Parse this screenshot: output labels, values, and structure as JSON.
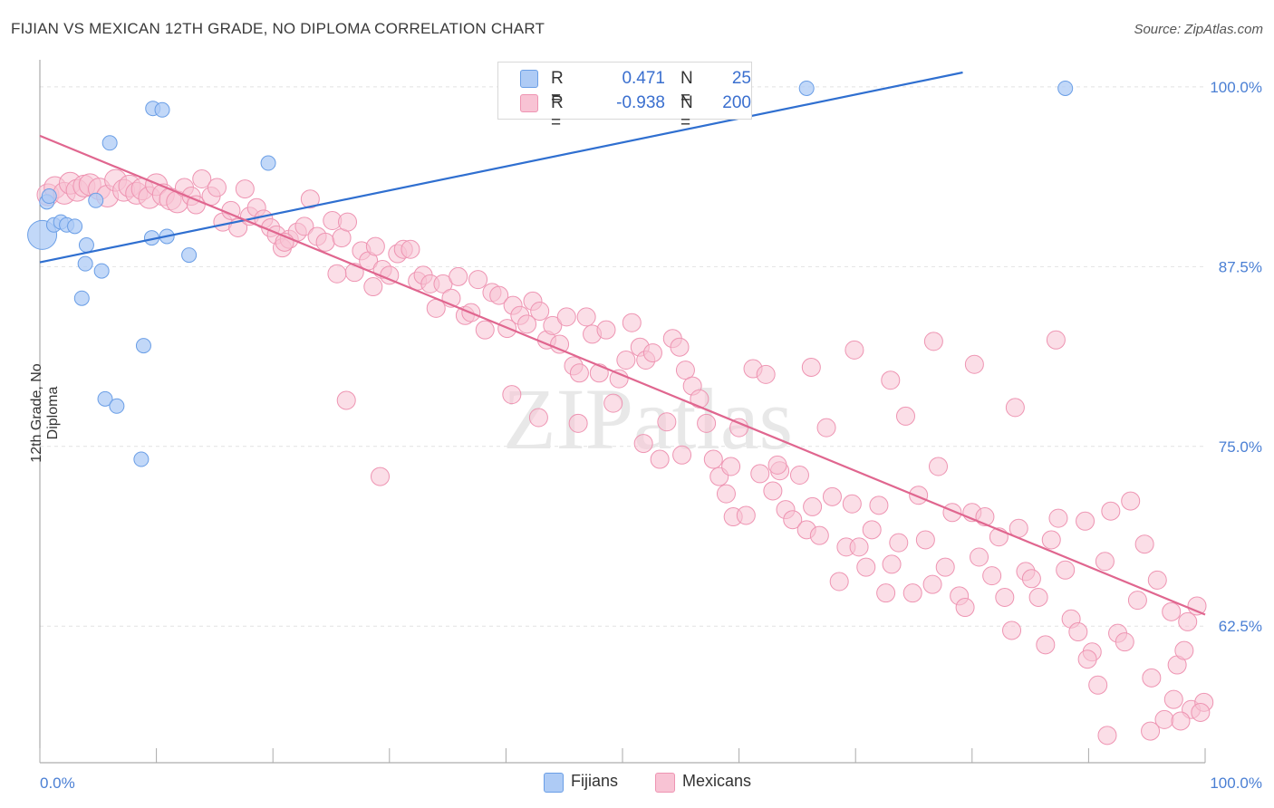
{
  "title": "FIJIAN VS MEXICAN 12TH GRADE, NO DIPLOMA CORRELATION CHART",
  "source": "Source: ZipAtlas.com",
  "watermark": "ZIPatlas",
  "colors": {
    "fijian_fill": "#aecbf5",
    "fijian_stroke": "#6a9ee6",
    "fijian_line": "#2f6fd0",
    "mexican_fill": "#f8c3d4",
    "mexican_stroke": "#ee94b2",
    "mexican_line": "#e0668f",
    "tick_label": "#4a7fd4",
    "grid": "#e2e2e2"
  },
  "legend": {
    "fijians": {
      "r_label": "R =",
      "r_value": "0.471",
      "n_label": "N =",
      "n_value": "25"
    },
    "mexicans": {
      "r_label": "R =",
      "r_value": "-0.938",
      "n_label": "N =",
      "n_value": "200"
    }
  },
  "bottom_legend": [
    "Fijians",
    "Mexicans"
  ],
  "chart_data": {
    "type": "scatter",
    "xlabel": "",
    "ylabel": "12th Grade, No Diploma",
    "xlim": [
      0,
      100
    ],
    "ylim": [
      53,
      101
    ],
    "x_tick_labels": [
      "0.0%",
      "100.0%"
    ],
    "y_ticks": [
      62.5,
      75.0,
      87.5,
      100.0
    ],
    "y_tick_labels": [
      "62.5%",
      "75.0%",
      "87.5%",
      "100.0%"
    ],
    "grid": true,
    "legend_position": "top-center",
    "series": [
      {
        "name": "Fijians",
        "r": 0.471,
        "n": 25,
        "trend": {
          "x": [
            0,
            79.2
          ],
          "y": [
            87.8,
            101.0
          ]
        },
        "points": [
          [
            0.2,
            89.7
          ],
          [
            0.6,
            92.0
          ],
          [
            1.2,
            90.4
          ],
          [
            1.8,
            90.6
          ],
          [
            2.3,
            90.4
          ],
          [
            3.0,
            90.3
          ],
          [
            4.8,
            92.1
          ],
          [
            4.0,
            89.0
          ],
          [
            3.9,
            87.7
          ],
          [
            5.3,
            87.2
          ],
          [
            3.6,
            85.3
          ],
          [
            6.0,
            96.1
          ],
          [
            9.7,
            98.5
          ],
          [
            10.5,
            98.4
          ],
          [
            19.6,
            94.7
          ],
          [
            9.6,
            89.5
          ],
          [
            10.9,
            89.6
          ],
          [
            12.8,
            88.3
          ],
          [
            8.9,
            82.0
          ],
          [
            5.6,
            78.3
          ],
          [
            6.6,
            77.8
          ],
          [
            8.7,
            74.1
          ],
          [
            65.8,
            99.9
          ],
          [
            88.0,
            99.9
          ],
          [
            0.8,
            92.4
          ]
        ]
      },
      {
        "name": "Mexicans",
        "r": -0.938,
        "n": 200,
        "trend": {
          "x": [
            0,
            100
          ],
          "y": [
            96.6,
            63.3
          ]
        },
        "points": [
          [
            0.7,
            92.5
          ],
          [
            1.3,
            93.0
          ],
          [
            2.1,
            92.6
          ],
          [
            2.6,
            93.3
          ],
          [
            3.2,
            92.8
          ],
          [
            3.8,
            93.1
          ],
          [
            4.3,
            93.2
          ],
          [
            5.1,
            92.9
          ],
          [
            5.8,
            92.4
          ],
          [
            6.5,
            93.5
          ],
          [
            7.2,
            92.8
          ],
          [
            7.7,
            93.1
          ],
          [
            8.3,
            92.6
          ],
          [
            8.8,
            92.9
          ],
          [
            9.4,
            92.3
          ],
          [
            10.0,
            93.2
          ],
          [
            10.6,
            92.5
          ],
          [
            11.2,
            92.2
          ],
          [
            11.8,
            92.0
          ],
          [
            12.4,
            93.0
          ],
          [
            13.0,
            92.4
          ],
          [
            13.4,
            91.8
          ],
          [
            13.9,
            93.6
          ],
          [
            14.7,
            92.4
          ],
          [
            15.2,
            93.0
          ],
          [
            15.7,
            90.6
          ],
          [
            16.4,
            91.4
          ],
          [
            17.0,
            90.2
          ],
          [
            17.6,
            92.9
          ],
          [
            18.0,
            91.0
          ],
          [
            18.6,
            91.6
          ],
          [
            19.2,
            90.8
          ],
          [
            19.8,
            90.2
          ],
          [
            20.3,
            89.7
          ],
          [
            20.8,
            88.8
          ],
          [
            21.4,
            89.4
          ],
          [
            22.1,
            89.9
          ],
          [
            22.7,
            90.3
          ],
          [
            23.2,
            92.2
          ],
          [
            23.8,
            89.6
          ],
          [
            24.5,
            89.2
          ],
          [
            25.1,
            90.7
          ],
          [
            25.9,
            89.5
          ],
          [
            26.4,
            90.6
          ],
          [
            27.0,
            87.1
          ],
          [
            27.6,
            88.6
          ],
          [
            28.2,
            87.9
          ],
          [
            28.8,
            88.9
          ],
          [
            29.4,
            87.3
          ],
          [
            30.0,
            86.9
          ],
          [
            30.7,
            88.4
          ],
          [
            31.2,
            88.7
          ],
          [
            31.8,
            88.7
          ],
          [
            32.4,
            86.5
          ],
          [
            32.9,
            86.9
          ],
          [
            33.5,
            86.3
          ],
          [
            34.0,
            84.6
          ],
          [
            34.6,
            86.3
          ],
          [
            35.3,
            85.3
          ],
          [
            35.9,
            86.8
          ],
          [
            36.5,
            84.1
          ],
          [
            37.0,
            84.3
          ],
          [
            37.6,
            86.6
          ],
          [
            38.2,
            83.1
          ],
          [
            38.8,
            85.7
          ],
          [
            39.4,
            85.5
          ],
          [
            40.1,
            83.2
          ],
          [
            40.6,
            84.8
          ],
          [
            41.2,
            84.1
          ],
          [
            41.8,
            83.5
          ],
          [
            42.3,
            85.1
          ],
          [
            42.9,
            84.4
          ],
          [
            43.5,
            82.4
          ],
          [
            44.0,
            83.4
          ],
          [
            44.6,
            82.1
          ],
          [
            45.2,
            84.0
          ],
          [
            45.8,
            80.6
          ],
          [
            46.3,
            80.1
          ],
          [
            46.9,
            84.0
          ],
          [
            47.4,
            82.8
          ],
          [
            48.0,
            80.1
          ],
          [
            48.6,
            83.1
          ],
          [
            49.2,
            78.0
          ],
          [
            49.7,
            79.7
          ],
          [
            50.3,
            81.0
          ],
          [
            50.8,
            83.6
          ],
          [
            51.5,
            81.9
          ],
          [
            52.0,
            81.0
          ],
          [
            52.6,
            81.5
          ],
          [
            53.2,
            74.1
          ],
          [
            53.8,
            76.7
          ],
          [
            54.3,
            82.5
          ],
          [
            54.9,
            81.9
          ],
          [
            55.4,
            80.3
          ],
          [
            56.0,
            79.2
          ],
          [
            56.6,
            78.3
          ],
          [
            57.2,
            76.6
          ],
          [
            57.8,
            74.1
          ],
          [
            58.3,
            72.9
          ],
          [
            58.9,
            71.7
          ],
          [
            59.5,
            70.1
          ],
          [
            60.0,
            76.3
          ],
          [
            60.6,
            70.2
          ],
          [
            61.2,
            80.4
          ],
          [
            61.8,
            73.1
          ],
          [
            62.3,
            80.0
          ],
          [
            62.9,
            71.9
          ],
          [
            63.5,
            73.3
          ],
          [
            64.0,
            70.6
          ],
          [
            64.6,
            69.9
          ],
          [
            65.2,
            73.0
          ],
          [
            65.8,
            69.2
          ],
          [
            66.3,
            70.8
          ],
          [
            66.9,
            68.8
          ],
          [
            67.5,
            76.3
          ],
          [
            68.0,
            71.5
          ],
          [
            68.6,
            65.6
          ],
          [
            69.2,
            68.0
          ],
          [
            69.7,
            71.0
          ],
          [
            70.3,
            68.0
          ],
          [
            70.9,
            66.6
          ],
          [
            71.4,
            69.2
          ],
          [
            72.0,
            70.9
          ],
          [
            72.6,
            64.8
          ],
          [
            73.1,
            66.8
          ],
          [
            73.7,
            68.3
          ],
          [
            74.3,
            77.1
          ],
          [
            74.9,
            64.8
          ],
          [
            75.4,
            71.6
          ],
          [
            76.0,
            68.5
          ],
          [
            76.6,
            65.4
          ],
          [
            77.1,
            73.6
          ],
          [
            77.7,
            66.6
          ],
          [
            78.3,
            70.4
          ],
          [
            78.9,
            64.6
          ],
          [
            79.4,
            63.8
          ],
          [
            80.0,
            70.4
          ],
          [
            80.6,
            67.3
          ],
          [
            81.1,
            70.1
          ],
          [
            81.7,
            66.0
          ],
          [
            82.3,
            68.7
          ],
          [
            82.8,
            64.5
          ],
          [
            83.4,
            62.2
          ],
          [
            84.0,
            69.3
          ],
          [
            84.6,
            66.3
          ],
          [
            85.1,
            65.8
          ],
          [
            85.7,
            64.5
          ],
          [
            86.3,
            61.2
          ],
          [
            86.8,
            68.5
          ],
          [
            87.4,
            70.0
          ],
          [
            88.0,
            66.4
          ],
          [
            88.5,
            63.0
          ],
          [
            89.1,
            62.1
          ],
          [
            89.7,
            69.8
          ],
          [
            90.3,
            60.7
          ],
          [
            90.8,
            58.4
          ],
          [
            91.4,
            67.0
          ],
          [
            91.9,
            70.5
          ],
          [
            92.5,
            62.0
          ],
          [
            93.1,
            61.4
          ],
          [
            93.6,
            71.2
          ],
          [
            94.2,
            64.3
          ],
          [
            94.8,
            68.2
          ],
          [
            95.4,
            58.9
          ],
          [
            95.9,
            65.7
          ],
          [
            96.5,
            56.0
          ],
          [
            97.1,
            63.5
          ],
          [
            97.6,
            59.8
          ],
          [
            98.2,
            60.8
          ],
          [
            98.8,
            56.7
          ],
          [
            99.3,
            63.9
          ],
          [
            99.9,
            57.2
          ],
          [
            98.5,
            62.8
          ],
          [
            97.9,
            55.9
          ],
          [
            26.3,
            78.2
          ],
          [
            29.2,
            72.9
          ],
          [
            40.5,
            78.6
          ],
          [
            42.8,
            77.0
          ],
          [
            46.2,
            76.6
          ],
          [
            51.8,
            75.2
          ],
          [
            55.1,
            74.4
          ],
          [
            59.3,
            73.6
          ],
          [
            63.3,
            73.7
          ],
          [
            66.2,
            80.5
          ],
          [
            69.9,
            81.7
          ],
          [
            73.0,
            79.6
          ],
          [
            76.7,
            82.3
          ],
          [
            80.2,
            80.7
          ],
          [
            83.7,
            77.7
          ],
          [
            87.2,
            82.4
          ],
          [
            89.9,
            60.2
          ],
          [
            95.3,
            55.2
          ],
          [
            97.3,
            57.4
          ],
          [
            99.6,
            56.5
          ],
          [
            91.6,
            54.9
          ],
          [
            21.0,
            89.2
          ],
          [
            25.5,
            87.0
          ],
          [
            28.6,
            86.1
          ]
        ]
      }
    ]
  }
}
